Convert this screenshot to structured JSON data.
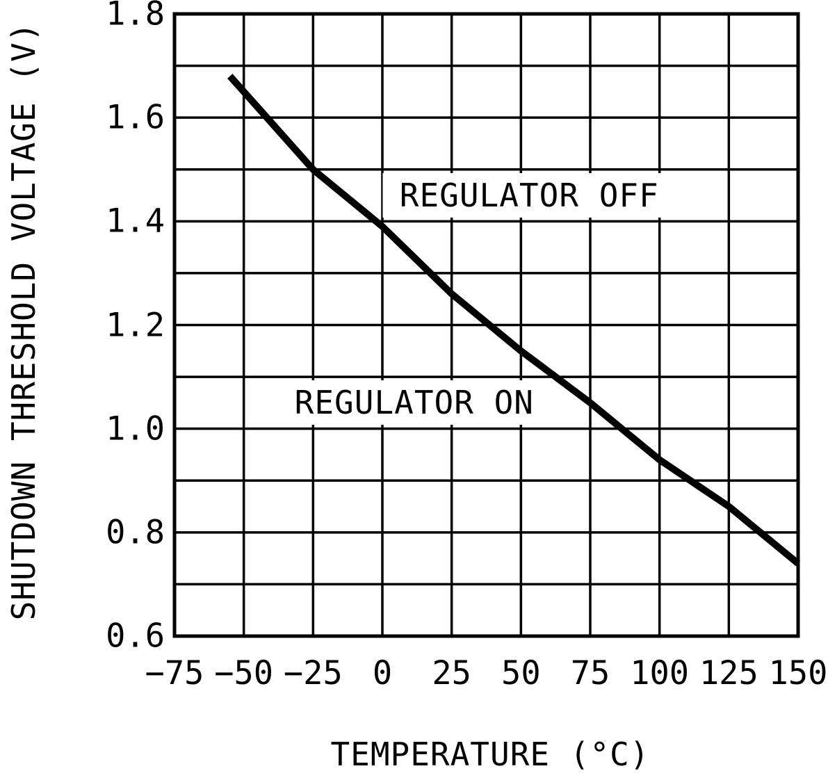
{
  "figure": {
    "background": "#ffffff",
    "line_color": "#000000",
    "grid_color": "#000000"
  },
  "chart_data": {
    "type": "line",
    "title": "",
    "xlabel": "TEMPERATURE (°C)",
    "ylabel": "SHUTDOWN THRESHOLD VOLTAGE (V)",
    "xlim": [
      -75,
      150
    ],
    "ylim": [
      0.6,
      1.8
    ],
    "x_grid_step": 25,
    "y_grid_step": 0.1,
    "grid": true,
    "legend": "none",
    "x_ticks": [
      -75,
      -50,
      -25,
      0,
      25,
      50,
      75,
      100,
      125,
      150
    ],
    "x_tick_labels": [
      "−75",
      "−50",
      "−25",
      "0",
      "25",
      "50",
      "75",
      "100",
      "125",
      "150"
    ],
    "y_ticks": [
      0.6,
      0.8,
      1.0,
      1.2,
      1.4,
      1.6,
      1.8
    ],
    "y_tick_labels": [
      "0.6",
      "0.8",
      "1.0",
      "1.2",
      "1.4",
      "1.6",
      "1.8"
    ],
    "series": [
      {
        "name": "shutdown-threshold-voltage",
        "color": "#000000",
        "x": [
          -55,
          -50,
          -25,
          0,
          25,
          50,
          75,
          100,
          125,
          150
        ],
        "y": [
          1.68,
          1.65,
          1.5,
          1.39,
          1.26,
          1.15,
          1.05,
          0.94,
          0.85,
          0.74
        ]
      }
    ],
    "annotations": [
      {
        "text": "REGULATOR OFF",
        "x": 53,
        "y": 1.45
      },
      {
        "text": "REGULATOR ON",
        "x": 11.5,
        "y": 1.05
      }
    ]
  }
}
